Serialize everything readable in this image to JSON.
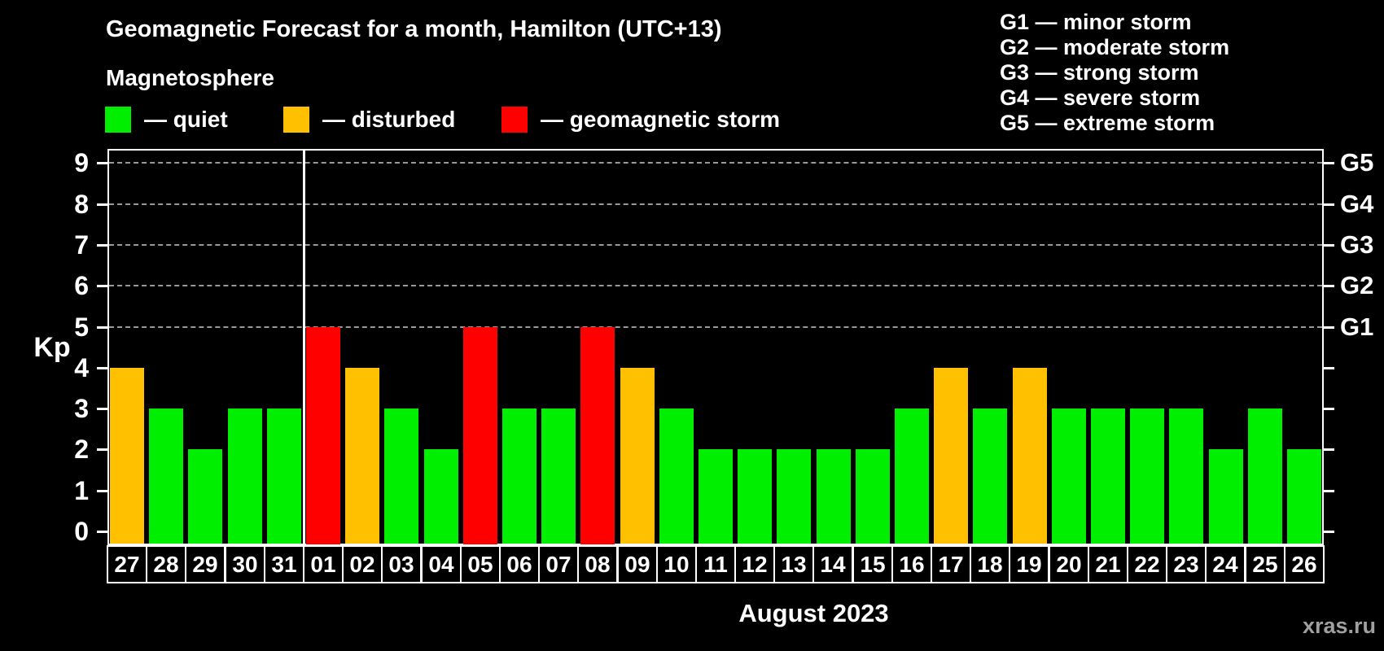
{
  "title": "Geomagnetic Forecast for a month, Hamilton (UTC+13)",
  "subtitle": "Magnetosphere",
  "legend": {
    "items": [
      {
        "key": "quiet",
        "label": "— quiet"
      },
      {
        "key": "disturbed",
        "label": "— disturbed"
      },
      {
        "key": "storm",
        "label": "— geomagnetic storm"
      }
    ]
  },
  "g_legend": [
    "G1 — minor storm",
    "G2 — moderate storm",
    "G3 — strong storm",
    "G4 — severe storm",
    "G5 — extreme storm"
  ],
  "colors": {
    "quiet": "#00ee00",
    "disturbed": "#ffc000",
    "storm": "#ff0000",
    "axis": "#ffffff",
    "grid": "#999999",
    "background": "#000000",
    "text": "#ffffff",
    "watermark": "#a0a0a0"
  },
  "watermark": "xras.ru",
  "chart_data": {
    "type": "bar",
    "title": "Geomagnetic Forecast for a month, Hamilton (UTC+13)",
    "subtitle": "Magnetosphere",
    "ylabel": "Kp",
    "xlabel": "August 2023",
    "ylim": [
      0,
      9.4
    ],
    "yticks": [
      0,
      1,
      2,
      3,
      4,
      5,
      6,
      7,
      8,
      9
    ],
    "grid": "horizontal dashed gridlines at Kp 5,6,7,8,9",
    "legend_position": "top-left",
    "categories": [
      "27",
      "28",
      "29",
      "30",
      "31",
      "01",
      "02",
      "03",
      "04",
      "05",
      "06",
      "07",
      "08",
      "09",
      "10",
      "11",
      "12",
      "13",
      "14",
      "15",
      "16",
      "17",
      "18",
      "19",
      "20",
      "21",
      "22",
      "23",
      "24",
      "25",
      "26"
    ],
    "values": [
      4,
      3,
      2,
      3,
      3,
      5,
      4,
      3,
      2,
      5,
      3,
      3,
      5,
      4,
      3,
      2,
      2,
      2,
      2,
      2,
      3,
      4,
      3,
      4,
      3,
      3,
      3,
      3,
      2,
      3,
      2
    ],
    "states": [
      "disturbed",
      "quiet",
      "quiet",
      "quiet",
      "quiet",
      "storm",
      "disturbed",
      "quiet",
      "quiet",
      "storm",
      "quiet",
      "quiet",
      "storm",
      "disturbed",
      "quiet",
      "quiet",
      "quiet",
      "quiet",
      "quiet",
      "quiet",
      "quiet",
      "disturbed",
      "quiet",
      "disturbed",
      "quiet",
      "quiet",
      "quiet",
      "quiet",
      "quiet",
      "quiet",
      "quiet"
    ],
    "right_axis": [
      {
        "kp": 5,
        "label": "G1"
      },
      {
        "kp": 6,
        "label": "G2"
      },
      {
        "kp": 7,
        "label": "G3"
      },
      {
        "kp": 8,
        "label": "G4"
      },
      {
        "kp": 9,
        "label": "G5"
      }
    ],
    "month_separator_after_index": 4
  }
}
